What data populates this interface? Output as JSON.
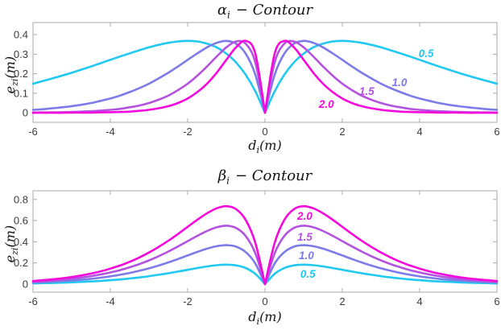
{
  "figure": {
    "background": "#ffffff",
    "axis_color": "#a9a9a9",
    "tick_label_color": "#3c3c3c",
    "title_color": "#141414"
  },
  "chart_data": [
    {
      "type": "line",
      "title": {
        "sym": "α",
        "sub": "i",
        "rest": "− Contour"
      },
      "xlabel": {
        "sym": "d",
        "sub": "i",
        "rest": "(m)"
      },
      "ylabel": {
        "sym": "e",
        "sub": "zi",
        "rest": "(m)"
      },
      "xlim": [
        -6,
        6
      ],
      "ylim": [
        -0.049,
        0.462
      ],
      "xticks": [
        -6,
        -4,
        -2,
        0,
        2,
        4,
        6
      ],
      "xtick_labels": [
        "-6",
        "-4",
        "-2",
        "0",
        "2",
        "4",
        "6"
      ],
      "yticks": [
        0,
        0.1,
        0.2,
        0.3,
        0.4
      ],
      "ytick_labels": [
        "0",
        "0.1",
        "0.2",
        "0.3",
        "0.4"
      ],
      "grid": false,
      "legend": "inline curve labels",
      "symmetric_about_x0": true,
      "formula": "e_zi = a*|d|*exp(-a*|d|), a = curve label value",
      "x_half": [
        0,
        0.25,
        0.5,
        0.75,
        1,
        1.25,
        1.5,
        1.75,
        2,
        2.25,
        2.5,
        2.75,
        3,
        3.25,
        3.5,
        3.75,
        4,
        4.25,
        4.5,
        4.75,
        5,
        5.25,
        5.5,
        5.75,
        6
      ],
      "series": [
        {
          "name": "0.5",
          "color": "#20c8f2",
          "y_half": [
            0,
            0.11,
            0.195,
            0.258,
            0.303,
            0.335,
            0.354,
            0.365,
            0.368,
            0.365,
            0.358,
            0.348,
            0.335,
            0.32,
            0.304,
            0.288,
            0.271,
            0.254,
            0.237,
            0.221,
            0.205,
            0.19,
            0.176,
            0.162,
            0.149
          ]
        },
        {
          "name": "1.0",
          "color": "#7d7ae9",
          "y_half": [
            0,
            0.195,
            0.303,
            0.354,
            0.368,
            0.358,
            0.335,
            0.304,
            0.271,
            0.237,
            0.205,
            0.176,
            0.149,
            0.126,
            0.106,
            0.088,
            0.073,
            0.061,
            0.05,
            0.041,
            0.034,
            0.028,
            0.023,
            0.018,
            0.015
          ]
        },
        {
          "name": "1.5",
          "color": "#b452e0",
          "y_half": [
            0,
            0.258,
            0.354,
            0.365,
            0.335,
            0.288,
            0.237,
            0.19,
            0.149,
            0.116,
            0.088,
            0.067,
            0.05,
            0.037,
            0.028,
            0.02,
            0.015,
            0.011,
            0.008,
            0.006,
            0.004,
            0.003,
            0.002,
            0.002,
            0.001
          ]
        },
        {
          "name": "2.0",
          "color": "#f508dc",
          "y_half": [
            0,
            0.303,
            0.368,
            0.335,
            0.271,
            0.205,
            0.149,
            0.106,
            0.073,
            0.05,
            0.034,
            0.023,
            0.015,
            0.01,
            0.006,
            0.004,
            0.003,
            0.002,
            0.001,
            0.001,
            0.001,
            0.0,
            0.0,
            0.0,
            0.0
          ]
        }
      ],
      "annotations": [
        {
          "text": "0.5",
          "color": "#20c8f2",
          "x": 4.17,
          "y": 0.301
        },
        {
          "text": "1.0",
          "color": "#7d7ae9",
          "x": 3.48,
          "y": 0.153
        },
        {
          "text": "1.5",
          "color": "#b452e0",
          "x": 2.63,
          "y": 0.108
        },
        {
          "text": "2.0",
          "color": "#f508dc",
          "x": 1.59,
          "y": 0.042
        }
      ]
    },
    {
      "type": "line",
      "title": {
        "sym": "β",
        "sub": "i",
        "rest": "− Contour"
      },
      "xlabel": {
        "sym": "d",
        "sub": "i",
        "rest": "(m)"
      },
      "ylabel": {
        "sym": "e",
        "sub": "zi",
        "rest": "(m)"
      },
      "xlim": [
        -6,
        6
      ],
      "ylim": [
        -0.076,
        0.882
      ],
      "xticks": [
        -6,
        -4,
        -2,
        0,
        2,
        4,
        6
      ],
      "xtick_labels": [
        "-6",
        "-4",
        "-2",
        "0",
        "2",
        "4",
        "6"
      ],
      "yticks": [
        0,
        0.2,
        0.4,
        0.6,
        0.8
      ],
      "ytick_labels": [
        "0",
        "0.2",
        "0.4",
        "0.6",
        "0.8"
      ],
      "grid": false,
      "legend": "inline curve labels",
      "symmetric_about_x0": true,
      "formula": "e_zi = b*|d|*exp(-|d|), b = curve label value",
      "x_half": [
        0,
        0.25,
        0.5,
        0.75,
        1,
        1.25,
        1.5,
        1.75,
        2,
        2.25,
        2.5,
        2.75,
        3,
        3.25,
        3.5,
        3.75,
        4,
        4.25,
        4.5,
        4.75,
        5,
        5.25,
        5.5,
        5.75,
        6
      ],
      "series": [
        {
          "name": "0.5",
          "color": "#20c8f2",
          "y_half": [
            0,
            0.097,
            0.152,
            0.177,
            0.184,
            0.179,
            0.167,
            0.152,
            0.135,
            0.119,
            0.103,
            0.088,
            0.075,
            0.063,
            0.053,
            0.044,
            0.037,
            0.03,
            0.025,
            0.021,
            0.017,
            0.014,
            0.011,
            0.009,
            0.007
          ]
        },
        {
          "name": "1.0",
          "color": "#7d7ae9",
          "y_half": [
            0,
            0.195,
            0.303,
            0.354,
            0.368,
            0.358,
            0.335,
            0.304,
            0.271,
            0.237,
            0.205,
            0.176,
            0.149,
            0.126,
            0.106,
            0.088,
            0.073,
            0.061,
            0.05,
            0.041,
            0.034,
            0.028,
            0.023,
            0.018,
            0.015
          ]
        },
        {
          "name": "1.5",
          "color": "#b452e0",
          "y_half": [
            0,
            0.292,
            0.455,
            0.531,
            0.552,
            0.537,
            0.502,
            0.456,
            0.406,
            0.356,
            0.308,
            0.264,
            0.224,
            0.189,
            0.159,
            0.132,
            0.11,
            0.091,
            0.075,
            0.062,
            0.051,
            0.041,
            0.034,
            0.027,
            0.022
          ]
        },
        {
          "name": "2.0",
          "color": "#f508dc",
          "y_half": [
            0,
            0.389,
            0.607,
            0.709,
            0.736,
            0.716,
            0.669,
            0.608,
            0.541,
            0.474,
            0.41,
            0.352,
            0.299,
            0.252,
            0.211,
            0.176,
            0.147,
            0.121,
            0.1,
            0.082,
            0.067,
            0.055,
            0.045,
            0.037,
            0.03
          ]
        }
      ],
      "annotations": [
        {
          "text": "2.0",
          "color": "#f508dc",
          "x": 1.03,
          "y": 0.639
        },
        {
          "text": "1.5",
          "color": "#b452e0",
          "x": 1.03,
          "y": 0.441
        },
        {
          "text": "1.0",
          "color": "#7d7ae9",
          "x": 1.07,
          "y": 0.266
        },
        {
          "text": "0.5",
          "color": "#20c8f2",
          "x": 1.11,
          "y": 0.091
        }
      ]
    }
  ]
}
